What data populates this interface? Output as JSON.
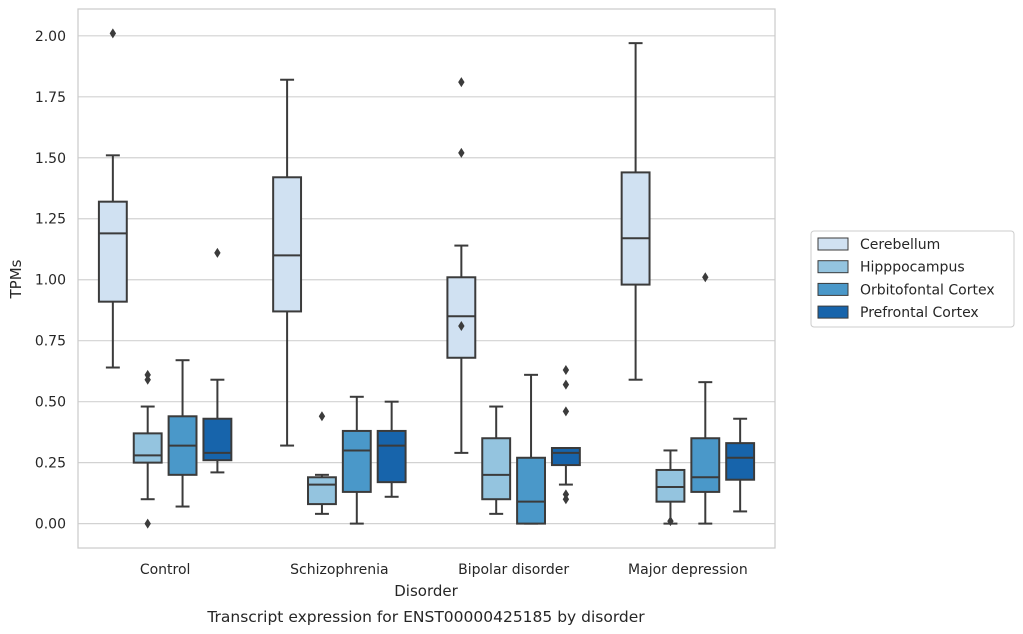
{
  "chart_data": {
    "type": "box",
    "title": "Transcript expression for ENST00000425185 by disorder",
    "xlabel": "Disorder",
    "ylabel": "TPMs",
    "ylim": [
      -0.1,
      2.11
    ],
    "yticks": [
      0.0,
      0.25,
      0.5,
      0.75,
      1.0,
      1.25,
      1.5,
      1.75,
      2.0
    ],
    "ytick_labels": [
      "0.00",
      "0.25",
      "0.50",
      "0.75",
      "1.00",
      "1.25",
      "1.50",
      "1.75",
      "2.00"
    ],
    "grid": "horizontal",
    "legend_position": "right",
    "categories": [
      "Control",
      "Schizophrenia",
      "Bipolar disorder",
      "Major depression"
    ],
    "series": [
      {
        "name": "Cerebellum",
        "color": "#d0e1f2",
        "boxes": [
          {
            "whisker_low": 0.64,
            "q1": 0.91,
            "median": 1.19,
            "q3": 1.32,
            "whisker_high": 1.51,
            "outliers": [
              2.01
            ]
          },
          {
            "whisker_low": 0.32,
            "q1": 0.87,
            "median": 1.1,
            "q3": 1.42,
            "whisker_high": 1.82,
            "outliers": []
          },
          {
            "whisker_low": 0.29,
            "q1": 0.68,
            "median": 0.85,
            "q3": 1.01,
            "whisker_high": 1.14,
            "outliers": [
              1.81,
              1.52,
              0.81
            ]
          },
          {
            "whisker_low": 0.59,
            "q1": 0.98,
            "median": 1.17,
            "q3": 1.44,
            "whisker_high": 1.97,
            "outliers": []
          }
        ]
      },
      {
        "name": "Hipppocampus",
        "color": "#94c4df",
        "boxes": [
          {
            "whisker_low": 0.1,
            "q1": 0.25,
            "median": 0.28,
            "q3": 0.37,
            "whisker_high": 0.48,
            "outliers": [
              0.61,
              0.59,
              0.0
            ]
          },
          {
            "whisker_low": 0.04,
            "q1": 0.08,
            "median": 0.16,
            "q3": 0.19,
            "whisker_high": 0.2,
            "outliers": [
              0.44
            ]
          },
          {
            "whisker_low": 0.04,
            "q1": 0.1,
            "median": 0.2,
            "q3": 0.35,
            "whisker_high": 0.48,
            "outliers": []
          },
          {
            "whisker_low": 0.0,
            "q1": 0.09,
            "median": 0.15,
            "q3": 0.22,
            "whisker_high": 0.3,
            "outliers": [
              0.01
            ]
          }
        ]
      },
      {
        "name": "Orbitofontal Cortex",
        "color": "#4a98c9",
        "boxes": [
          {
            "whisker_low": 0.07,
            "q1": 0.2,
            "median": 0.32,
            "q3": 0.44,
            "whisker_high": 0.67,
            "outliers": []
          },
          {
            "whisker_low": 0.0,
            "q1": 0.13,
            "median": 0.3,
            "q3": 0.38,
            "whisker_high": 0.52,
            "outliers": []
          },
          {
            "whisker_low": 0.0,
            "q1": 0.0,
            "median": 0.09,
            "q3": 0.27,
            "whisker_high": 0.61,
            "outliers": []
          },
          {
            "whisker_low": 0.0,
            "q1": 0.13,
            "median": 0.19,
            "q3": 0.35,
            "whisker_high": 0.58,
            "outliers": [
              1.01
            ]
          }
        ]
      },
      {
        "name": "Prefrontal Cortex",
        "color": "#1764ab",
        "boxes": [
          {
            "whisker_low": 0.21,
            "q1": 0.26,
            "median": 0.29,
            "q3": 0.43,
            "whisker_high": 0.59,
            "outliers": [
              1.11
            ]
          },
          {
            "whisker_low": 0.11,
            "q1": 0.17,
            "median": 0.32,
            "q3": 0.38,
            "whisker_high": 0.5,
            "outliers": []
          },
          {
            "whisker_low": 0.16,
            "q1": 0.24,
            "median": 0.29,
            "q3": 0.31,
            "whisker_high": 0.31,
            "outliers": [
              0.63,
              0.57,
              0.46,
              0.12,
              0.1
            ]
          },
          {
            "whisker_low": 0.05,
            "q1": 0.18,
            "median": 0.27,
            "q3": 0.33,
            "whisker_high": 0.43,
            "outliers": []
          }
        ]
      }
    ]
  }
}
